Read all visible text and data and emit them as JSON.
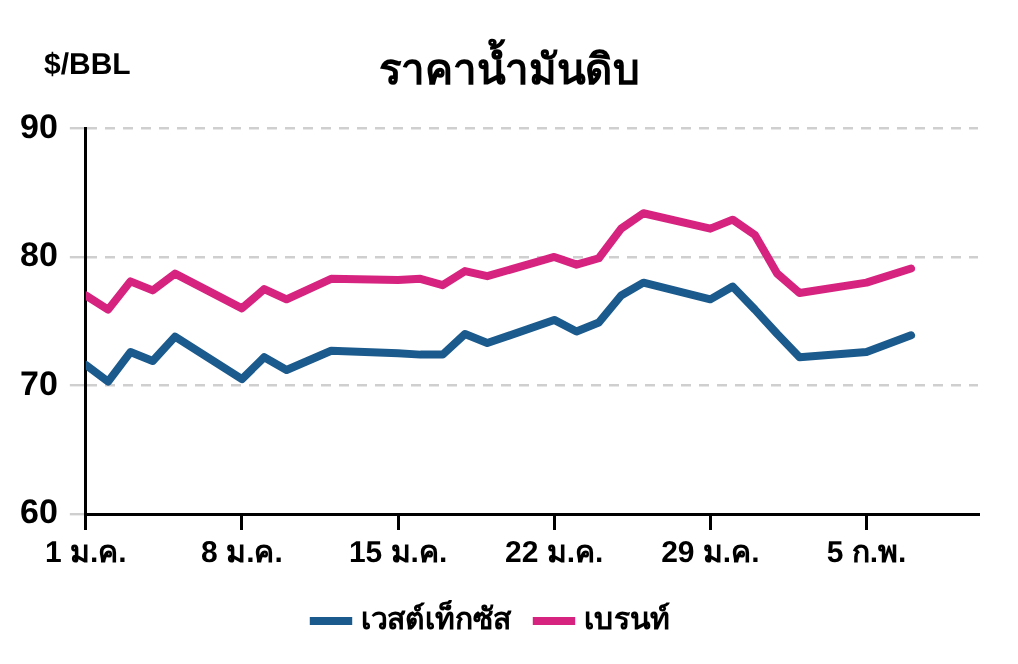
{
  "chart_data": {
    "type": "line",
    "title": "ราคาน้ำมันดิบ",
    "ylabel": "$/BBL",
    "x": [
      "--01-01",
      "--01-02",
      "--01-03",
      "--01-04",
      "--01-05",
      "--01-08",
      "--01-09",
      "--01-10",
      "--01-12",
      "--01-15",
      "--01-16",
      "--01-17",
      "--01-18",
      "--01-19",
      "--01-22",
      "--01-23",
      "--01-24",
      "--01-25",
      "--01-26",
      "--01-29",
      "--01-30",
      "--01-31",
      "--02-01",
      "--02-02",
      "--02-05",
      "--02-07"
    ],
    "series": [
      {
        "name": "เวสต์เท็กซัส",
        "color": "#1b5a8c",
        "values": [
          71.6,
          70.3,
          72.6,
          71.9,
          73.8,
          70.5,
          72.2,
          71.2,
          72.7,
          72.5,
          72.4,
          72.4,
          74.0,
          73.3,
          75.1,
          74.2,
          74.9,
          77.0,
          78.0,
          76.7,
          77.7,
          75.9,
          74.0,
          72.2,
          72.6,
          73.9
        ]
      },
      {
        "name": "เบรนท์",
        "color": "#d6237f",
        "values": [
          77.0,
          75.9,
          78.1,
          77.4,
          78.7,
          76.0,
          77.5,
          76.7,
          78.3,
          78.2,
          78.3,
          77.8,
          78.9,
          78.5,
          80.0,
          79.4,
          79.9,
          82.2,
          83.4,
          82.2,
          82.9,
          81.7,
          78.7,
          77.2,
          78.0,
          79.1
        ]
      }
    ],
    "xlim": [
      "--01-01",
      "--02-10"
    ],
    "xticks": [
      {
        "value": "--01-01",
        "label": "1 ม.ค."
      },
      {
        "value": "--01-08",
        "label": "8 ม.ค."
      },
      {
        "value": "--01-15",
        "label": "15 ม.ค."
      },
      {
        "value": "--01-22",
        "label": "22 ม.ค."
      },
      {
        "value": "--01-29",
        "label": "29 ม.ค."
      },
      {
        "value": "--02-05",
        "label": "5 ก.พ."
      }
    ],
    "ylim": [
      60,
      90
    ],
    "yticks": [
      60,
      70,
      80,
      90
    ],
    "grid": "y",
    "legend": "bottom",
    "line_style": "solid",
    "marker": "none"
  }
}
